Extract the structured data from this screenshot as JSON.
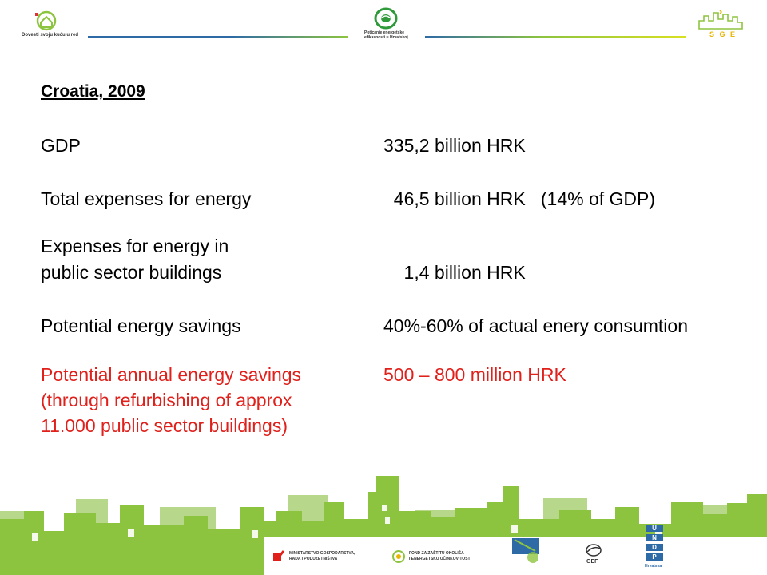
{
  "header": {
    "left_logo_text": "Dovesti svoju kuću u red",
    "center_logo_text_1": "Poticanje energetske",
    "center_logo_text_2": "efikasnosti u Hrvatskoj",
    "right_logo_text": "S G E"
  },
  "content": {
    "title": "Croatia, 2009",
    "rows": [
      {
        "label": "GDP",
        "value": "335,2 billion HRK"
      },
      {
        "label": "Total expenses for energy",
        "value": "  46,5 billion HRK   (14% of GDP)"
      },
      {
        "label_1": "Expenses for energy in",
        "label_2": "public sector buildings",
        "value": "    1,4 billion HRK"
      },
      {
        "label": "Potential energy savings",
        "value": "40%-60% of actual enery consumtion"
      },
      {
        "label_1": "Potential annual energy savings",
        "label_2": "(through refurbishing of approx",
        "label_3": "11.000 public sector buildings)",
        "value": "500 – 800 million HRK"
      }
    ]
  },
  "footer": {
    "sponsor_1_line1": "MINISTARSTVO GOSPODARSTVA,",
    "sponsor_1_line2": "RADA I PODUZETNIŠTVA",
    "sponsor_2_line1": "FOND ZA ZAŠTITU OKOLIŠA",
    "sponsor_2_line2": "I ENERGETSKU UČINKOVITOST",
    "gef": "GEF",
    "undp_letters": [
      "U",
      "N",
      "D",
      "P"
    ],
    "undp_sub": "Hrvatska"
  },
  "colors": {
    "accent_green": "#8dc43f",
    "light_green": "#b7d88a",
    "blue_line": "#2e6aa6",
    "highlight_red": "#e0201b"
  }
}
